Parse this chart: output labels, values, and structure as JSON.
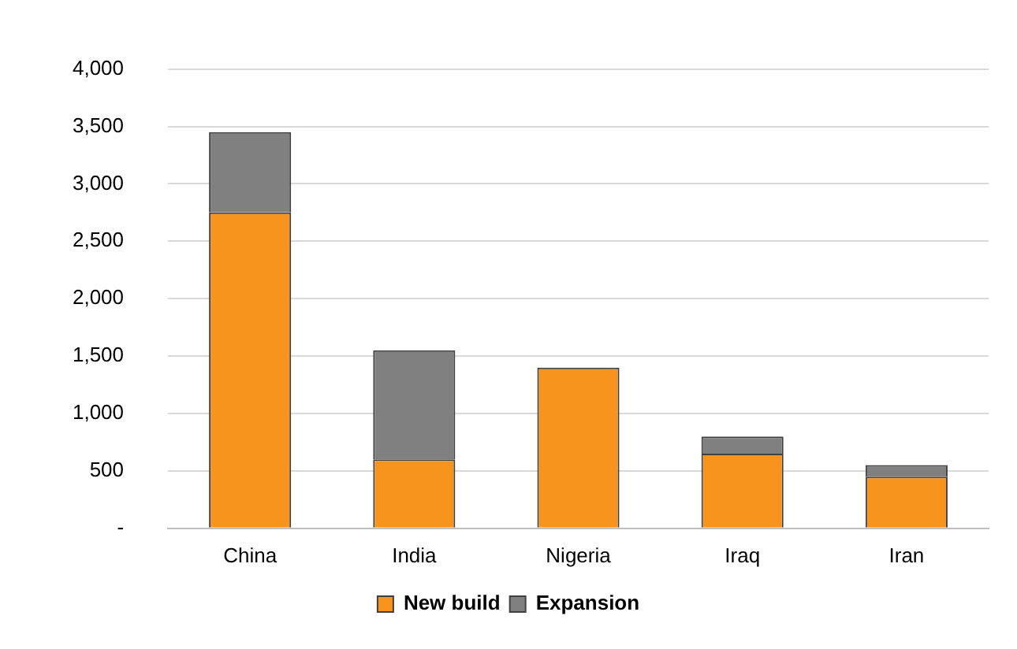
{
  "chart_data": {
    "type": "bar",
    "stacked": true,
    "categories": [
      "China",
      "India",
      "Nigeria",
      "Iraq",
      "Iran"
    ],
    "series": [
      {
        "name": "New build",
        "color": "#f7941d",
        "values": [
          2750,
          600,
          1400,
          650,
          450
        ]
      },
      {
        "name": "Expansion",
        "color": "#808080",
        "values": [
          700,
          950,
          0,
          150,
          100
        ]
      }
    ],
    "ylim": [
      0,
      4000
    ],
    "yticks": [
      {
        "value": 0,
        "label": "-"
      },
      500,
      {
        "value": 1000,
        "label": "1,000"
      },
      {
        "value": 1500,
        "label": "1,500"
      },
      {
        "value": 2000,
        "label": "2,000"
      },
      {
        "value": 2500,
        "label": "2,500"
      },
      {
        "value": 3000,
        "label": "3,000"
      },
      {
        "value": 3500,
        "label": "3,500"
      },
      {
        "value": 4000,
        "label": "4,000"
      }
    ],
    "grid": "y",
    "legend": "bottom"
  }
}
